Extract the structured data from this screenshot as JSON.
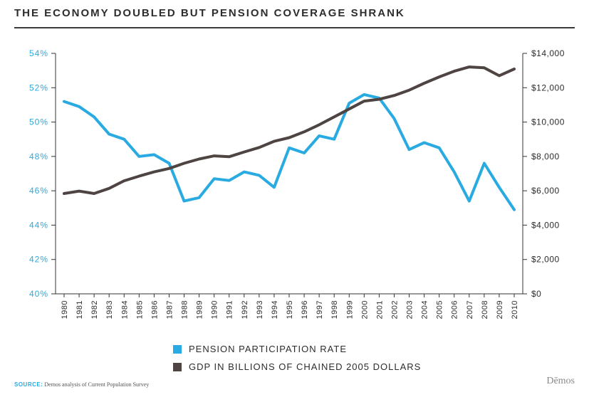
{
  "header": {
    "title": "THE ECONOMY DOUBLED BUT PENSION COVERAGE SHRANK"
  },
  "footer": {
    "source_label": "SOURCE:",
    "source_text": "Demos analysis of Current Population Survey",
    "logo": "Dēmos"
  },
  "colors": {
    "pension": "#29abe2",
    "gdp": "#4e4442",
    "axis": "#333333"
  },
  "chart_data": {
    "type": "line",
    "title": "THE ECONOMY DOUBLED BUT PENSION COVERAGE SHRANK",
    "x": [
      "1980",
      "1981",
      "1982",
      "1983",
      "1984",
      "1985",
      "1986",
      "1987",
      "1988",
      "1989",
      "1990",
      "1991",
      "1992",
      "1993",
      "1994",
      "1995",
      "1996",
      "1997",
      "1998",
      "1999",
      "2000",
      "2001",
      "2002",
      "2003",
      "2004",
      "2005",
      "2006",
      "2007",
      "2008",
      "2009",
      "2010"
    ],
    "y_left": {
      "ylim": [
        40,
        54
      ],
      "ticks": [
        "40%",
        "42%",
        "44%",
        "46%",
        "48%",
        "50%",
        "52%",
        "54%"
      ]
    },
    "y_right": {
      "ylim": [
        0,
        14000
      ],
      "ticks": [
        "$0",
        "$2,000",
        "$4,000",
        "$6,000",
        "$8,000",
        "$10,000",
        "$12,000",
        "$14,000"
      ]
    },
    "series": [
      {
        "name": "PENSION PARTICIPATION RATE",
        "axis": "left",
        "values": [
          51.2,
          50.9,
          50.3,
          49.3,
          49.0,
          48.0,
          48.1,
          47.6,
          45.4,
          45.6,
          46.7,
          46.6,
          47.1,
          46.9,
          46.2,
          48.5,
          48.2,
          49.2,
          49.0,
          51.1,
          51.6,
          51.4,
          50.2,
          48.4,
          48.8,
          48.5,
          47.1,
          45.4,
          47.6,
          46.2,
          44.9
        ]
      },
      {
        "name": "GDP IN BILLIONS OF CHAINED 2005 DOLLARS",
        "axis": "right",
        "values": [
          5840,
          5980,
          5840,
          6140,
          6580,
          6850,
          7100,
          7300,
          7600,
          7850,
          8030,
          7980,
          8260,
          8520,
          8880,
          9090,
          9430,
          9840,
          10300,
          10760,
          11220,
          11330,
          11550,
          11860,
          12260,
          12630,
          12960,
          13210,
          13160,
          12700,
          13090
        ]
      }
    ],
    "legend_position": "bottom-center",
    "grid": false
  }
}
